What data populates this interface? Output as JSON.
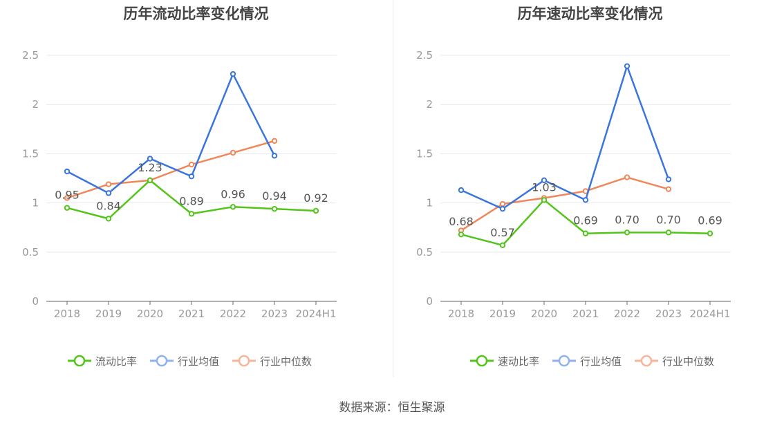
{
  "source_text": "数据来源：恒生聚源",
  "colors": {
    "primary": "#52c41a",
    "industry_avg": "#3a75dc",
    "industry_median": "#f0875a",
    "legend_primary": "#52c41a",
    "legend_avg": "#8fb2ee",
    "legend_median": "#f6b49a"
  },
  "chart_data": [
    {
      "type": "line",
      "title": "历年流动比率变化情况",
      "categories": [
        "2018",
        "2019",
        "2020",
        "2021",
        "2022",
        "2023",
        "2024H1"
      ],
      "ylim": [
        0,
        2.5
      ],
      "yticks": [
        "0",
        "0.5",
        "1",
        "1.5",
        "2",
        "2.5"
      ],
      "grid": true,
      "legend_position": "bottom",
      "series": [
        {
          "name": "流动比率",
          "values": [
            0.95,
            0.84,
            1.23,
            0.89,
            0.96,
            0.94,
            0.92
          ],
          "labels": [
            "0.95",
            "0.84",
            "1.23",
            "0.89",
            "0.96",
            "0.94",
            "0.92"
          ]
        },
        {
          "name": "行业均值",
          "values": [
            1.32,
            1.1,
            1.45,
            1.27,
            2.31,
            1.48,
            null
          ]
        },
        {
          "name": "行业中位数",
          "values": [
            1.05,
            1.19,
            1.23,
            1.39,
            1.51,
            1.63,
            null
          ]
        }
      ]
    },
    {
      "type": "line",
      "title": "历年速动比率变化情况",
      "categories": [
        "2018",
        "2019",
        "2020",
        "2021",
        "2022",
        "2023",
        "2024H1"
      ],
      "ylim": [
        0,
        2.5
      ],
      "yticks": [
        "0",
        "0.5",
        "1",
        "1.5",
        "2",
        "2.5"
      ],
      "grid": true,
      "legend_position": "bottom",
      "series": [
        {
          "name": "速动比率",
          "values": [
            0.68,
            0.57,
            1.03,
            0.69,
            0.7,
            0.7,
            0.69
          ],
          "labels": [
            "0.68",
            "0.57",
            "1.03",
            "0.69",
            "0.70",
            "0.70",
            "0.69"
          ]
        },
        {
          "name": "行业均值",
          "values": [
            1.13,
            0.94,
            1.23,
            1.03,
            2.39,
            1.24,
            null
          ]
        },
        {
          "name": "行业中位数",
          "values": [
            0.72,
            0.99,
            1.05,
            1.12,
            1.26,
            1.14,
            null
          ]
        }
      ]
    }
  ]
}
